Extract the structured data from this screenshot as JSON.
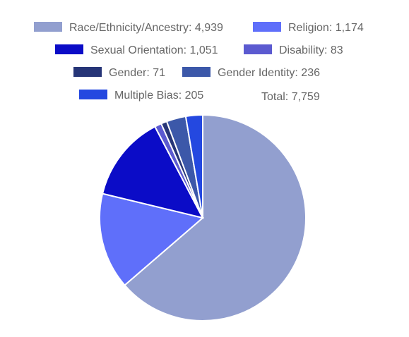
{
  "chart_data": {
    "type": "pie",
    "title": "",
    "legend_position": "top",
    "series": [
      {
        "name": "Race/Ethnicity/Ancestry",
        "value": 4939,
        "label": "Race/Ethnicity/Ancestry: 4,939",
        "color": "#929fcf"
      },
      {
        "name": "Religion",
        "value": 1174,
        "label": "Religion: 1,174",
        "color": "#5f6ffa"
      },
      {
        "name": "Sexual Orientation",
        "value": 1051,
        "label": "Sexual Orientation: 1,051",
        "color": "#0b0cc7"
      },
      {
        "name": "Disability",
        "value": 83,
        "label": "Disability: 83",
        "color": "#5b5ad0"
      },
      {
        "name": "Gender",
        "value": 71,
        "label": "Gender: 71",
        "color": "#263577"
      },
      {
        "name": "Gender Identity",
        "value": 236,
        "label": "Gender Identity: 236",
        "color": "#3c58a9"
      },
      {
        "name": "Multiple Bias",
        "value": 205,
        "label": "Multiple Bias: 205",
        "color": "#2448e0"
      }
    ],
    "total_label": "Total: 7,759"
  }
}
